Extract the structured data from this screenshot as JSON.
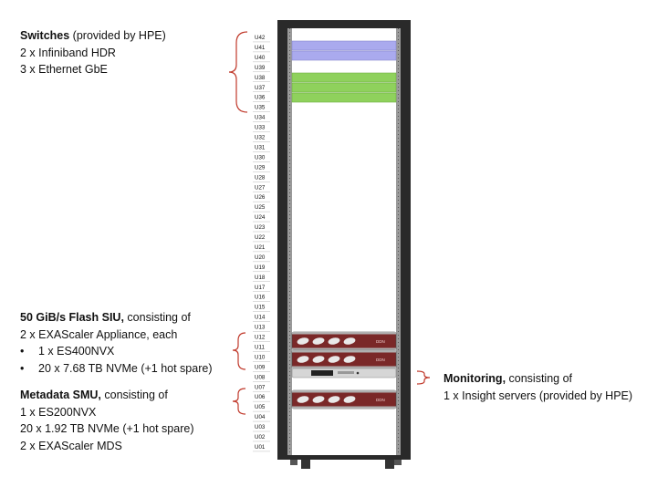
{
  "switches": {
    "title": "Switches",
    "title_suffix": " (provided by HPE)",
    "lines": [
      "2 x Infiniband HDR",
      "3 x Ethernet GbE"
    ]
  },
  "flash_siu": {
    "title": "50 GiB/s Flash SIU,",
    "title_suffix": " consisting of",
    "line1": "2 x EXAScaler Appliance, each",
    "bullets": [
      "1 x ES400NVX",
      "20 x 7.68 TB NVMe  (+1 hot spare)"
    ]
  },
  "metadata_smu": {
    "title": "Metadata SMU,",
    "title_suffix": " consisting of",
    "lines": [
      "1 x ES200NVX",
      "20 x 1.92 TB NVMe (+1 hot spare)",
      "2 x EXAScaler MDS"
    ]
  },
  "monitoring": {
    "title": "Monitoring,",
    "title_suffix": " consisting of",
    "lines": [
      "1 x Insight servers (provided by HPE)"
    ]
  },
  "rack": {
    "unit_labels": [
      "U42",
      "U41",
      "U40",
      "U39",
      "U38",
      "U37",
      "U36",
      "U35",
      "U34",
      "U33",
      "U32",
      "U31",
      "U30",
      "U29",
      "U28",
      "U27",
      "U26",
      "U25",
      "U24",
      "U23",
      "U22",
      "U21",
      "U20",
      "U19",
      "U18",
      "U17",
      "U16",
      "U15",
      "U14",
      "U13",
      "U12",
      "U11",
      "U10",
      "U09",
      "U08",
      "U07",
      "U06",
      "U05",
      "U04",
      "U03",
      "U02",
      "U01"
    ],
    "ddn_logo_text": "DDN",
    "infiniband_color": "#aaaaee",
    "ethernet_color": "#8fd15c",
    "bracket_color": "#c0392b"
  }
}
